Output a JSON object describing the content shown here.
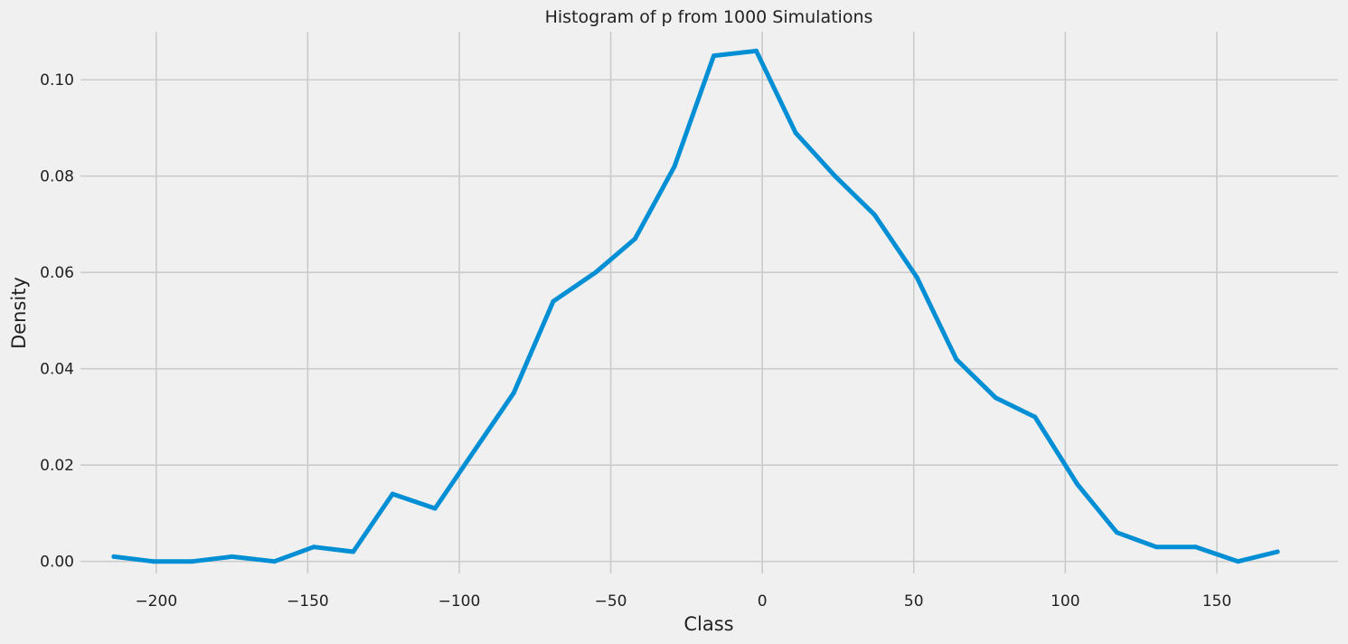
{
  "chart_data": {
    "type": "line",
    "title": "Histogram of p from 1000 Simulations",
    "xlabel": "Class",
    "ylabel": "Density",
    "xlim": [
      -225,
      190
    ],
    "ylim": [
      -0.0025,
      0.11
    ],
    "xticks": [
      -200,
      -150,
      -100,
      -50,
      0,
      50,
      100,
      150
    ],
    "xtick_labels": [
      "−200",
      "−150",
      "−100",
      "−50",
      "0",
      "50",
      "100",
      "150"
    ],
    "yticks": [
      0.0,
      0.02,
      0.04,
      0.06,
      0.08,
      0.1
    ],
    "ytick_labels": [
      "0.00",
      "0.02",
      "0.04",
      "0.06",
      "0.08",
      "0.10"
    ],
    "grid": true,
    "series": [
      {
        "color": "#008fd5",
        "x": [
          -214,
          -201,
          -188,
          -175,
          -161,
          -148,
          -135,
          -122,
          -108,
          -95,
          -82,
          -69,
          -55,
          -42,
          -29,
          -16,
          -2,
          11,
          24,
          37,
          51,
          64,
          77,
          90,
          104,
          117,
          130,
          143,
          157,
          170
        ],
        "y": [
          0.001,
          0.0,
          0.0,
          0.001,
          0.0,
          0.003,
          0.002,
          0.014,
          0.011,
          0.023,
          0.035,
          0.054,
          0.06,
          0.067,
          0.082,
          0.105,
          0.106,
          0.089,
          0.08,
          0.072,
          0.059,
          0.042,
          0.034,
          0.03,
          0.016,
          0.006,
          0.003,
          0.003,
          0.0,
          0.002
        ]
      }
    ]
  }
}
